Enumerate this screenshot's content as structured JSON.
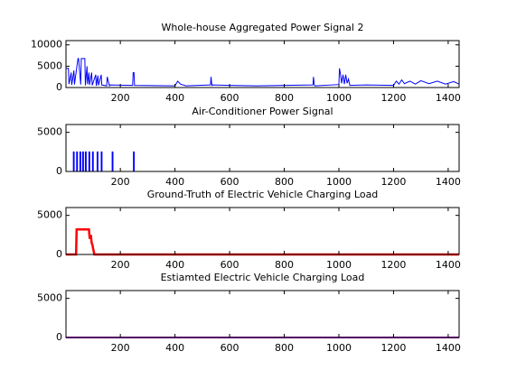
{
  "chart_data": [
    {
      "type": "line",
      "title": "Whole-house Aggregated Power Signal 2",
      "color": "#0000ff",
      "x": [
        1,
        10,
        12,
        20,
        22,
        30,
        32,
        45,
        47,
        55,
        57,
        70,
        72,
        78,
        80,
        85,
        87,
        95,
        97,
        110,
        112,
        118,
        120,
        130,
        132,
        150,
        152,
        160,
        162,
        245,
        247,
        250,
        252,
        400,
        410,
        420,
        440,
        530,
        532,
        535,
        537,
        600,
        700,
        800,
        905,
        907,
        910,
        912,
        1000,
        1002,
        1005,
        1010,
        1015,
        1020,
        1025,
        1030,
        1035,
        1040,
        1100,
        1200,
        1210,
        1220,
        1230,
        1240,
        1260,
        1280,
        1300,
        1330,
        1360,
        1390,
        1420,
        1440
      ],
      "values": [
        4500,
        4500,
        800,
        3500,
        600,
        4000,
        700,
        6800,
        6800,
        700,
        6800,
        6800,
        500,
        5000,
        800,
        3500,
        600,
        3500,
        500,
        3000,
        400,
        2800,
        500,
        3000,
        600,
        400,
        2500,
        400,
        600,
        500,
        3500,
        3500,
        500,
        400,
        1500,
        800,
        400,
        600,
        2500,
        500,
        600,
        500,
        400,
        500,
        600,
        2500,
        600,
        400,
        700,
        4500,
        3500,
        1000,
        3000,
        800,
        3000,
        1000,
        2000,
        500,
        600,
        500,
        1500,
        800,
        1800,
        900,
        1500,
        800,
        1600,
        900,
        1500,
        800,
        1400,
        800
      ],
      "xlim": [
        1,
        1440
      ],
      "ylim": [
        0,
        11000
      ],
      "xticks": [
        200,
        400,
        600,
        800,
        1000,
        1200,
        1400
      ],
      "yticks": [
        0,
        5000,
        10000
      ]
    },
    {
      "type": "line",
      "title": "Air-Conditioner Power Signal",
      "color": "#0000ff",
      "x": [
        1,
        28,
        28,
        31,
        31,
        40,
        40,
        43,
        43,
        52,
        52,
        55,
        55,
        62,
        62,
        65,
        65,
        72,
        72,
        75,
        75,
        85,
        85,
        88,
        88,
        98,
        98,
        101,
        101,
        115,
        115,
        118,
        118,
        130,
        130,
        133,
        133,
        170,
        170,
        173,
        173,
        248,
        248,
        251,
        251,
        1440
      ],
      "values": [
        0,
        0,
        2500,
        2500,
        0,
        0,
        2500,
        2500,
        0,
        0,
        2500,
        2500,
        0,
        0,
        2500,
        2500,
        0,
        0,
        2500,
        2500,
        0,
        0,
        2500,
        2500,
        0,
        0,
        2500,
        2500,
        0,
        0,
        2500,
        2500,
        0,
        0,
        2500,
        2500,
        0,
        0,
        2500,
        2500,
        0,
        0,
        2500,
        2500,
        0,
        0
      ],
      "xlim": [
        1,
        1440
      ],
      "ylim": [
        0,
        6000
      ],
      "xticks": [
        200,
        400,
        600,
        800,
        1000,
        1200,
        1400
      ],
      "yticks": [
        0,
        5000
      ]
    },
    {
      "type": "line",
      "title": "Ground-Truth of Electric Vehicle Charging Load",
      "color": "#ff0000",
      "x": [
        1,
        38,
        40,
        85,
        88,
        92,
        95,
        98,
        100,
        105,
        1440
      ],
      "values": [
        0,
        0,
        3200,
        3200,
        2000,
        2500,
        1500,
        1200,
        800,
        0,
        0
      ],
      "xlim": [
        1,
        1440
      ],
      "ylim": [
        0,
        6000
      ],
      "xticks": [
        200,
        400,
        600,
        800,
        1000,
        1200,
        1400
      ],
      "yticks": [
        0,
        5000
      ]
    },
    {
      "type": "line",
      "title": "Estiamted Electric Vehicle Charging Load",
      "color": "#a000c0",
      "x": [
        1,
        1440
      ],
      "values": [
        0,
        0
      ],
      "xlim": [
        1,
        1440
      ],
      "ylim": [
        0,
        6000
      ],
      "xticks": [
        200,
        400,
        600,
        800,
        1000,
        1200,
        1400
      ],
      "yticks": [
        0,
        5000
      ]
    }
  ]
}
